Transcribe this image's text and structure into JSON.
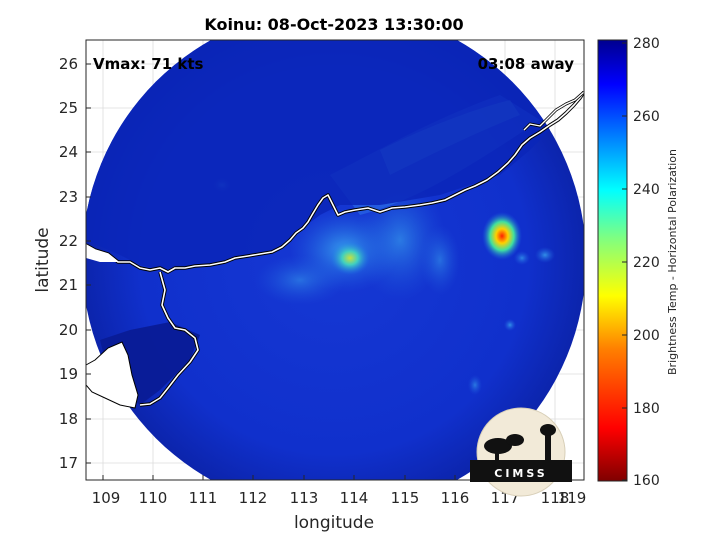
{
  "title": "Koinu: 08-Oct-2023 13:30:00",
  "annotations": {
    "vmax": "Vmax: 71 kts",
    "time_away": "03:08 away"
  },
  "axes": {
    "xlabel": "longitude",
    "ylabel": "latitude",
    "xlim": [
      108.5,
      119.3
    ],
    "ylim": [
      16.6,
      26.5
    ],
    "xticks": [
      "109",
      "110",
      "111",
      "112",
      "113",
      "114",
      "115",
      "116",
      "117",
      "118",
      "119"
    ],
    "yticks": [
      "17",
      "18",
      "19",
      "20",
      "21",
      "22",
      "23",
      "24",
      "25",
      "26"
    ]
  },
  "colorbar": {
    "label": "Brightness Temp - Horizontal Polarization",
    "range": [
      160,
      280
    ],
    "ticks": [
      "280",
      "260",
      "240",
      "220",
      "200",
      "180",
      "160"
    ]
  },
  "logo": {
    "text": "CIMSS"
  },
  "colors": {
    "background_field": "#0a28c8",
    "deep_blue": "#0a1a8a",
    "land_fill": "#ffffff",
    "coast_line": "#000000"
  }
}
